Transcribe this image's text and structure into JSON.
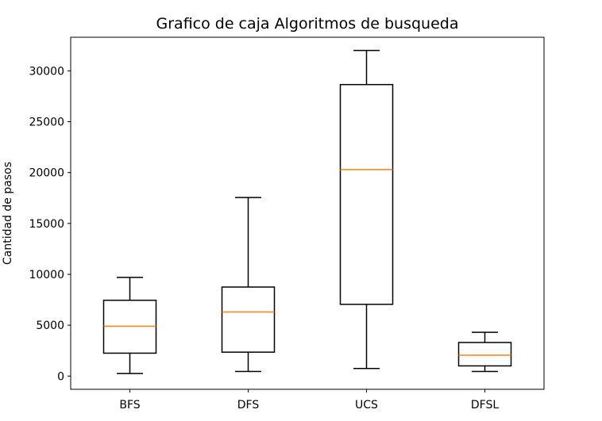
{
  "chart_data": {
    "type": "box",
    "title": "Grafico de caja Algoritmos de busqueda",
    "xlabel": "",
    "ylabel": "Cantidad de pasos",
    "ylim": [
      -1300,
      33300
    ],
    "y_ticks": [
      0,
      5000,
      10000,
      15000,
      20000,
      25000,
      30000
    ],
    "y_tick_labels": [
      "0",
      "5000",
      "10000",
      "15000",
      "20000",
      "25000",
      "30000"
    ],
    "categories": [
      "BFS",
      "DFS",
      "UCS",
      "DFSL"
    ],
    "boxes": [
      {
        "label": "BFS",
        "whisker_low": 250,
        "q1": 2250,
        "median": 4900,
        "q3": 7450,
        "whisker_high": 9700
      },
      {
        "label": "DFS",
        "whisker_low": 450,
        "q1": 2350,
        "median": 6300,
        "q3": 8750,
        "whisker_high": 17550
      },
      {
        "label": "UCS",
        "whisker_low": 750,
        "q1": 7050,
        "median": 20300,
        "q3": 28650,
        "whisker_high": 32000
      },
      {
        "label": "DFSL",
        "whisker_low": 450,
        "q1": 1000,
        "median": 2050,
        "q3": 3300,
        "whisker_high": 4300
      }
    ],
    "grid": false,
    "colors": {
      "box": "#000000",
      "median": "#ff7f0e",
      "axes": "#000000"
    }
  }
}
